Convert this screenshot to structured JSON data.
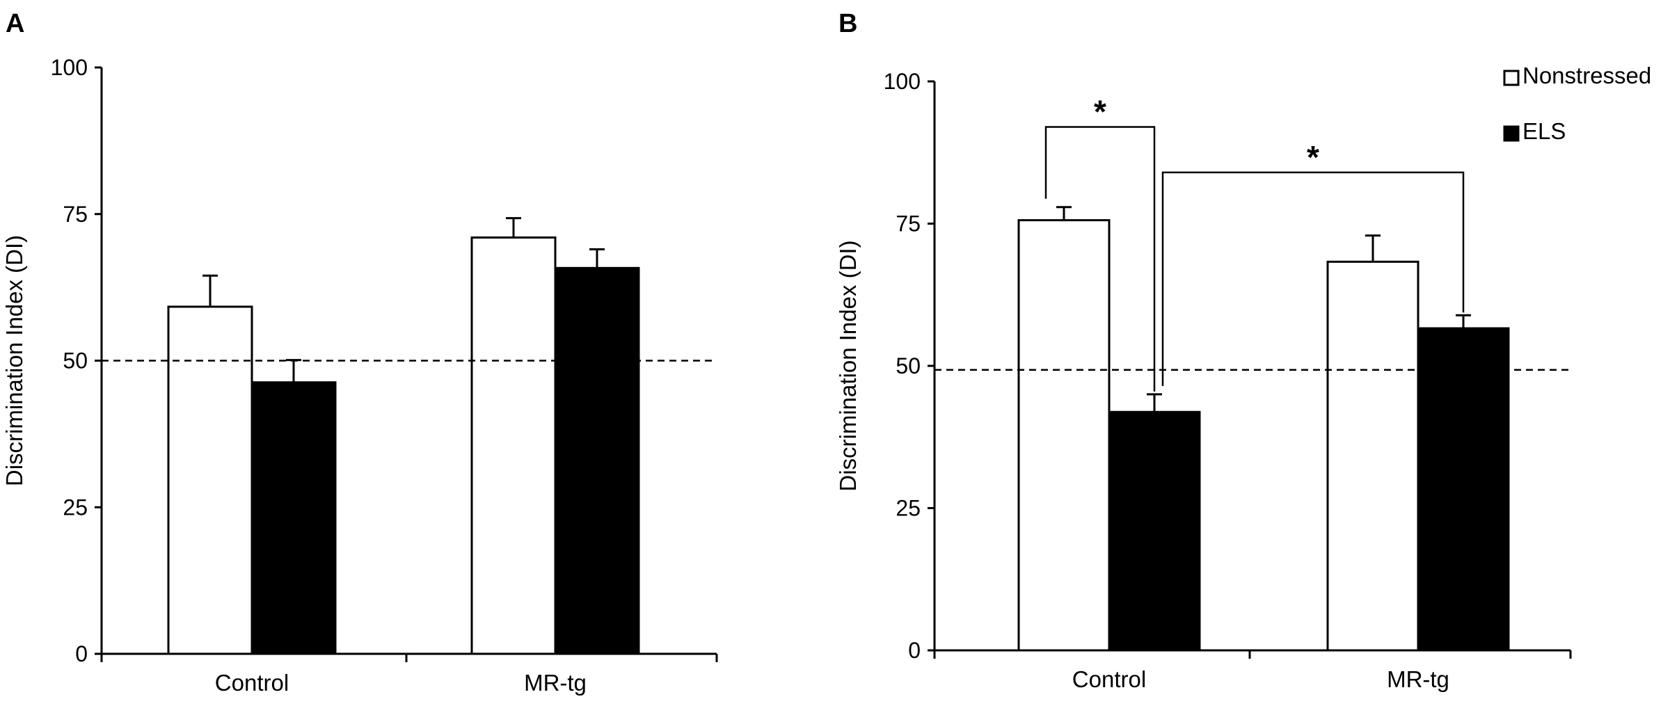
{
  "chart_data": [
    {
      "panel": "A",
      "type": "bar",
      "categories": [
        "Control",
        "MR-tg"
      ],
      "series": [
        {
          "name": "Nonstressed",
          "values": [
            59.2,
            71
          ],
          "errors": [
            5.3,
            3.3
          ],
          "color": "#ffffff"
        },
        {
          "name": "ELS",
          "values": [
            46.3,
            65.8
          ],
          "errors": [
            3.8,
            3.2
          ],
          "color": "#000000"
        }
      ],
      "ylabel": "Discrimination Index (DI)",
      "ylim": [
        0,
        100
      ],
      "yticks": [
        "0",
        "25",
        "50",
        "75",
        "100"
      ],
      "reference_line": 50,
      "legend": null,
      "significance": []
    },
    {
      "panel": "B",
      "type": "bar",
      "categories": [
        "Control",
        "MR-tg"
      ],
      "series": [
        {
          "name": "Nonstressed",
          "values": [
            75.6,
            68.3
          ],
          "errors": [
            2.3,
            4.6
          ],
          "color": "#ffffff"
        },
        {
          "name": "ELS",
          "values": [
            41.9,
            56.6
          ],
          "errors": [
            3.1,
            2.3
          ],
          "color": "#000000"
        }
      ],
      "ylabel": "Discrimination Index (DI)",
      "ylim": [
        0,
        100
      ],
      "yticks": [
        "0",
        "25",
        "50",
        "75",
        "100"
      ],
      "reference_line": 49.3,
      "legend": {
        "position": "top-right",
        "entries": [
          "Nonstressed",
          "ELS"
        ]
      },
      "significance": [
        {
          "label": "*",
          "from": [
            0,
            0
          ],
          "to": [
            0,
            1
          ],
          "level": 92
        },
        {
          "label": "*",
          "from": [
            0,
            1
          ],
          "to": [
            1,
            1
          ],
          "level": 84
        }
      ]
    }
  ]
}
